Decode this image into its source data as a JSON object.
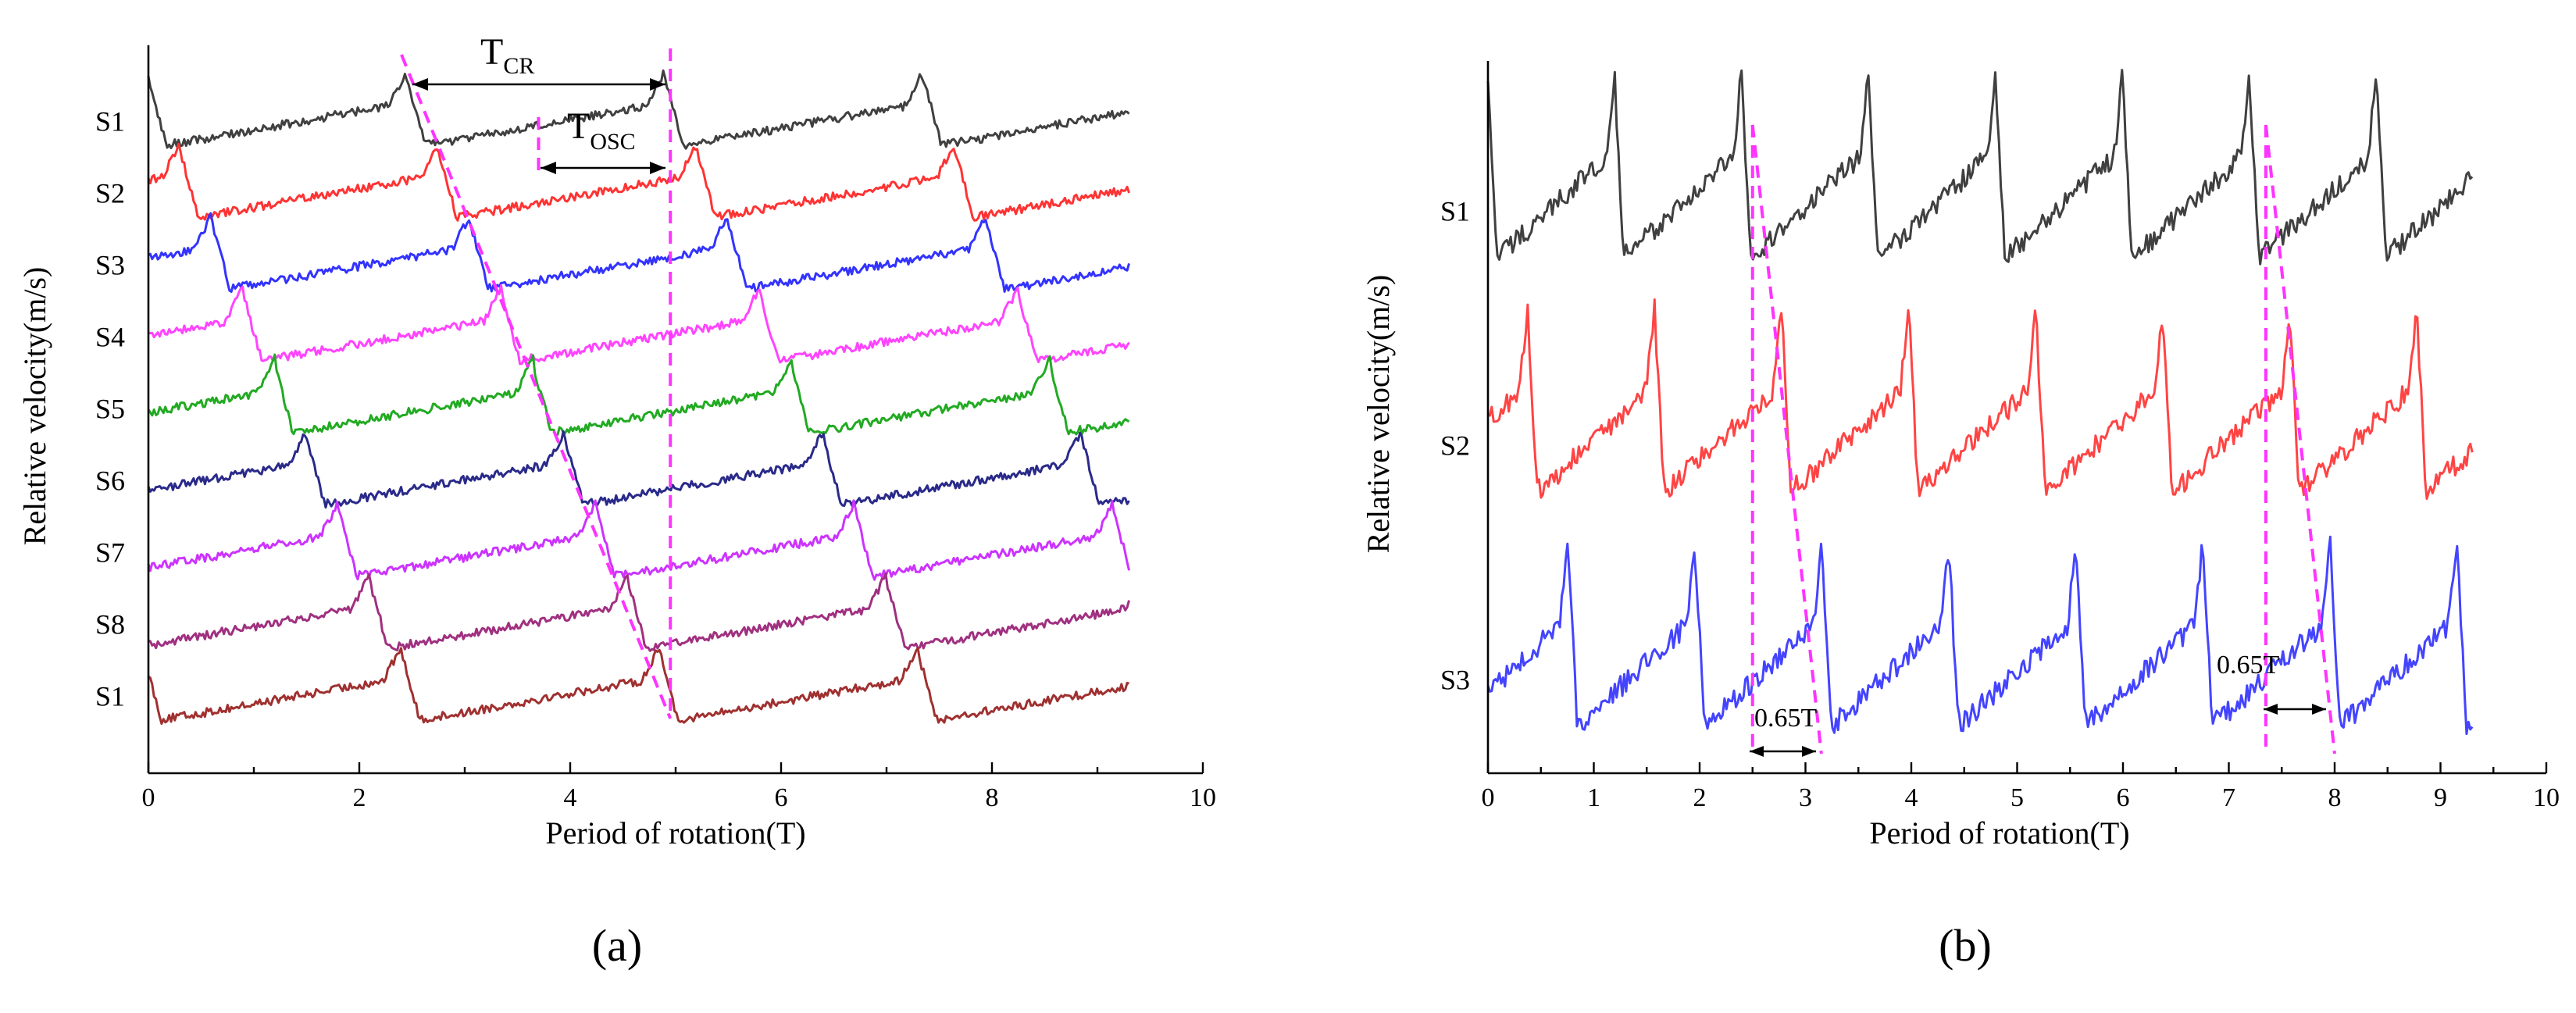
{
  "chart_data": [
    {
      "panel_id": "a",
      "type": "line",
      "panel_label": "(a)",
      "xlabel": "Period of rotation(T)",
      "ylabel": "Relative velocity(m/s)",
      "xlim": [
        0,
        10
      ],
      "x_ticks": [
        "0",
        "2",
        "4",
        "6",
        "8",
        "10"
      ],
      "x_end": 9.3,
      "series": [
        {
          "name": "S1",
          "color": "#404040",
          "phase": 0.0,
          "period": 2.45
        },
        {
          "name": "S2",
          "color": "#ff3333",
          "phase": 0.3,
          "period": 2.45
        },
        {
          "name": "S3",
          "color": "#3333ff",
          "phase": 0.6,
          "period": 2.45
        },
        {
          "name": "S4",
          "color": "#ff44ff",
          "phase": 0.9,
          "period": 2.45
        },
        {
          "name": "S5",
          "color": "#22aa22",
          "phase": 1.2,
          "period": 2.45
        },
        {
          "name": "S6",
          "color": "#2a2a8a",
          "phase": 1.5,
          "period": 2.45
        },
        {
          "name": "S7",
          "color": "#cc33ff",
          "phase": 1.8,
          "period": 2.45
        },
        {
          "name": "S8",
          "color": "#a03080",
          "phase": 2.1,
          "period": 2.45
        },
        {
          "name": "S1",
          "color": "#a03030",
          "phase": 2.4,
          "period": 2.45
        }
      ],
      "annotations": {
        "t_cr": {
          "main": "T",
          "sub": "CR",
          "from_x": 2.5,
          "to_x": 4.95
        },
        "t_osc": {
          "main": "T",
          "sub": "OSC",
          "from_x": 3.7,
          "to_x": 4.95
        },
        "diagonal_guide": {
          "from_x": 2.4,
          "to_x": 4.95
        },
        "vertical_guide_x": 4.95
      }
    },
    {
      "panel_id": "b",
      "type": "line",
      "panel_label": "(b)",
      "xlabel": "Period of rotation(T)",
      "ylabel": "Relative velocity(m/s)",
      "xlim": [
        0,
        10
      ],
      "x_ticks": [
        "0",
        "1",
        "2",
        "3",
        "4",
        "5",
        "6",
        "7",
        "8",
        "9",
        "10"
      ],
      "x_end": 9.3,
      "series": [
        {
          "name": "S1",
          "color": "#404040",
          "phase": 0.0,
          "period": 1.2
        },
        {
          "name": "S2",
          "color": "#ff4444",
          "phase": 0.38,
          "period": 1.2
        },
        {
          "name": "S3",
          "color": "#4444ff",
          "phase": 0.76,
          "period": 1.2
        }
      ],
      "annotations": {
        "lags": [
          {
            "text": "0.65T",
            "from_x": 2.5,
            "to_x": 3.15
          },
          {
            "text": "0.65T",
            "from_x": 7.35,
            "to_x": 8.0
          }
        ]
      }
    }
  ]
}
